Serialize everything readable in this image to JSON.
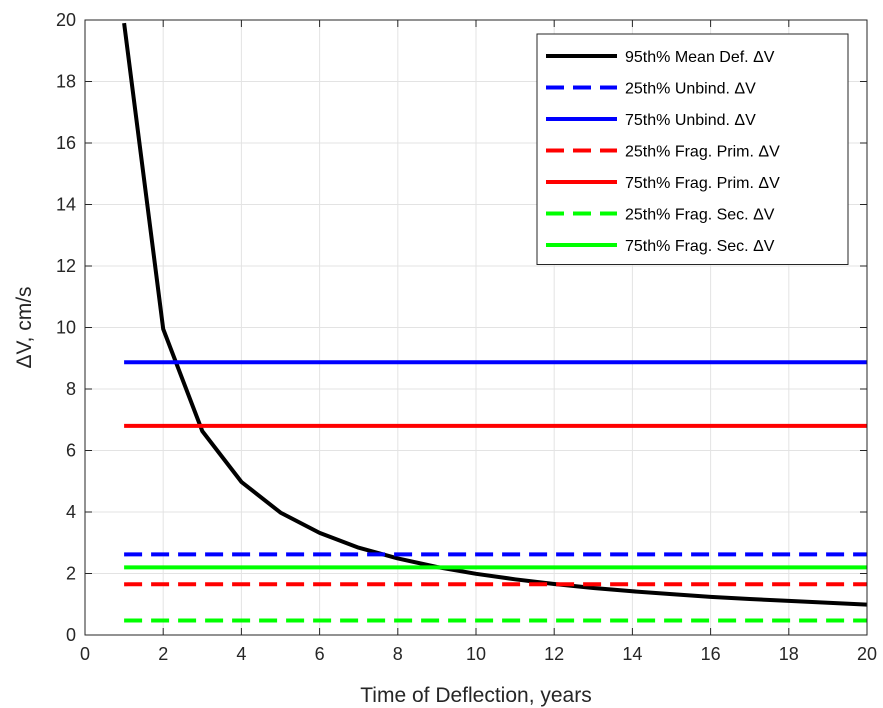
{
  "chart_data": {
    "type": "line",
    "title": "",
    "xlabel": "Time of Deflection, years",
    "ylabel": "ΔV, cm/s",
    "xlim": [
      0,
      20
    ],
    "ylim": [
      0,
      20
    ],
    "xticks": [
      0,
      2,
      4,
      6,
      8,
      10,
      12,
      14,
      16,
      18,
      20
    ],
    "yticks": [
      0,
      2,
      4,
      6,
      8,
      10,
      12,
      14,
      16,
      18,
      20
    ],
    "grid": true,
    "legend_position": "top-right",
    "series": [
      {
        "name": "95th% Mean Def. ΔV",
        "color": "#000000",
        "dash": "solid",
        "x": [
          1,
          2,
          3,
          4,
          5,
          6,
          7,
          8,
          9,
          10,
          11,
          12,
          13,
          14,
          15,
          16,
          17,
          18,
          19,
          20
        ],
        "y": [
          19.9,
          9.95,
          6.63,
          4.98,
          3.98,
          3.32,
          2.84,
          2.49,
          2.21,
          1.99,
          1.81,
          1.66,
          1.53,
          1.42,
          1.33,
          1.24,
          1.17,
          1.11,
          1.05,
          0.99
        ]
      },
      {
        "name": "25th% Unbind. ΔV",
        "color": "#0000ff",
        "dash": "dashed",
        "x": [
          1,
          20
        ],
        "y": [
          2.62,
          2.62
        ]
      },
      {
        "name": "75th% Unbind. ΔV",
        "color": "#0000ff",
        "dash": "solid",
        "x": [
          1,
          20
        ],
        "y": [
          8.87,
          8.87
        ]
      },
      {
        "name": "25th% Frag. Prim. ΔV",
        "color": "#ff0000",
        "dash": "dashed",
        "x": [
          1,
          20
        ],
        "y": [
          1.65,
          1.65
        ]
      },
      {
        "name": "75th% Frag. Prim. ΔV",
        "color": "#ff0000",
        "dash": "solid",
        "x": [
          1,
          20
        ],
        "y": [
          6.8,
          6.8
        ]
      },
      {
        "name": "25th% Frag. Sec. ΔV",
        "color": "#00ff00",
        "dash": "dashed",
        "x": [
          1,
          20
        ],
        "y": [
          0.47,
          0.47
        ]
      },
      {
        "name": "75th% Frag. Sec. ΔV",
        "color": "#00ff00",
        "dash": "solid",
        "x": [
          1,
          20
        ],
        "y": [
          2.2,
          2.2
        ]
      }
    ]
  }
}
